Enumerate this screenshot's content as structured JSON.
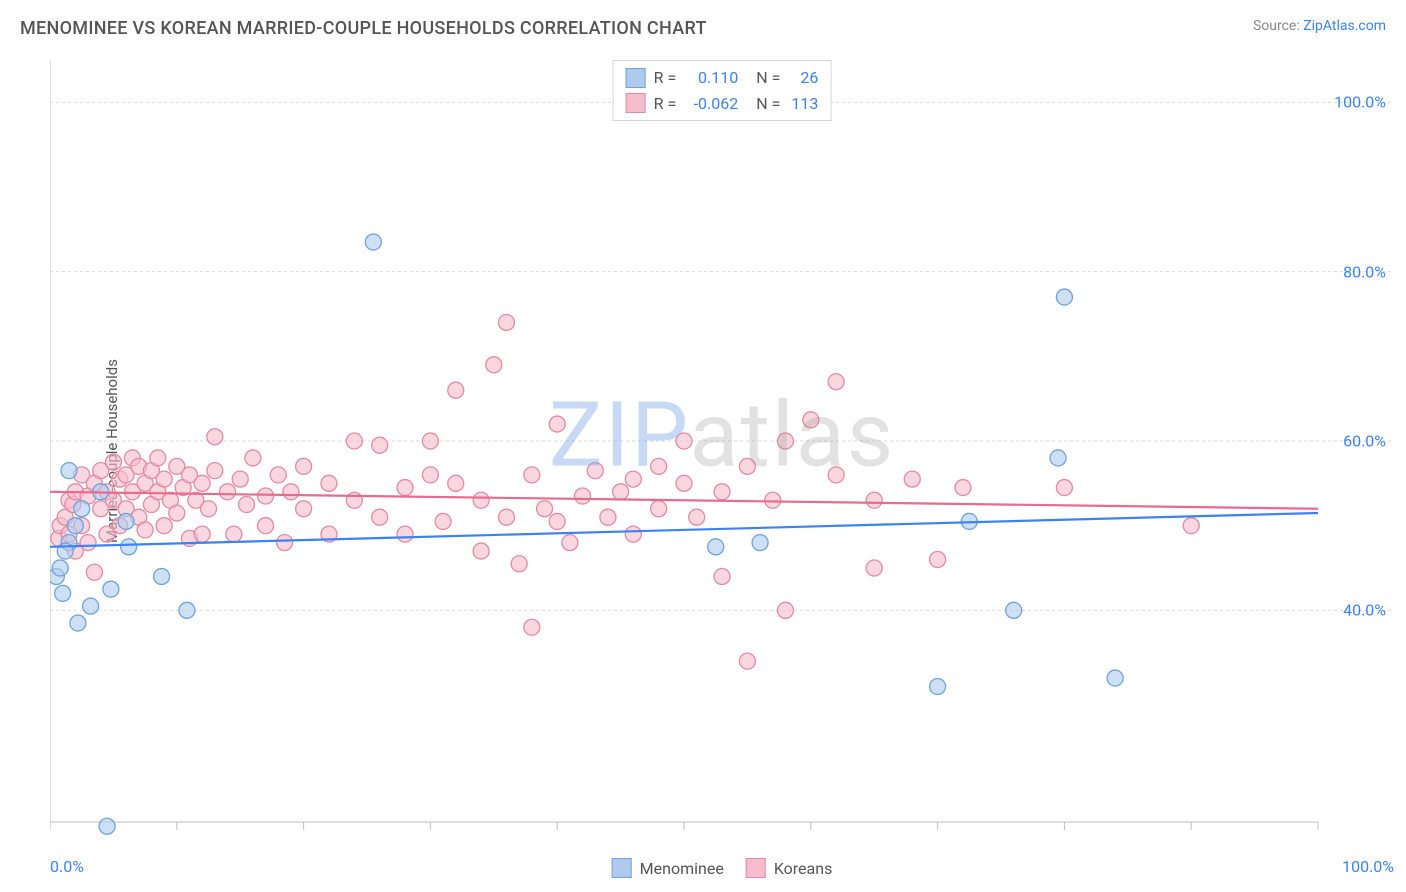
{
  "header": {
    "title": "MENOMINEE VS KOREAN MARRIED-COUPLE HOUSEHOLDS CORRELATION CHART",
    "source_prefix": "Source: ",
    "source_name": "ZipAtlas.com"
  },
  "watermark": {
    "part1": "ZIP",
    "part2": "atlas"
  },
  "chart": {
    "type": "scatter",
    "ylabel": "Married-couple Households",
    "xlim": [
      0,
      100
    ],
    "ylim": [
      15,
      105
    ],
    "x_ticks": [
      0,
      10,
      20,
      30,
      40,
      50,
      60,
      70,
      80,
      90,
      100
    ],
    "y_gridlines": [
      40,
      60,
      80,
      100
    ],
    "y_tick_labels": [
      "40.0%",
      "60.0%",
      "80.0%",
      "100.0%"
    ],
    "x_min_label": "0.0%",
    "x_max_label": "100.0%",
    "background_color": "#ffffff",
    "grid_color": "#d9d9d9",
    "axis_color": "#bfbfbf",
    "tick_label_color": "#3b82f6",
    "marker_radius": 8,
    "marker_stroke_width": 1.3,
    "trend_line_width": 2.2,
    "series": [
      {
        "name": "Menominee",
        "fill": "#aecbee",
        "stroke": "#6fa3de",
        "fill_opacity": 0.6,
        "R": "0.110",
        "N": "26",
        "trend": {
          "y_at_x0": 47.5,
          "y_at_x100": 51.5,
          "color": "#3b82f6"
        },
        "points": [
          [
            0.5,
            44.0
          ],
          [
            0.8,
            45.0
          ],
          [
            1.0,
            42.0
          ],
          [
            1.5,
            48.0
          ],
          [
            1.5,
            56.5
          ],
          [
            2.0,
            50.0
          ],
          [
            2.2,
            38.5
          ],
          [
            3.2,
            40.5
          ],
          [
            4.0,
            54.0
          ],
          [
            4.8,
            42.5
          ],
          [
            6.0,
            50.5
          ],
          [
            6.2,
            47.5
          ],
          [
            8.8,
            44.0
          ],
          [
            10.8,
            40.0
          ],
          [
            25.5,
            83.5
          ],
          [
            52.5,
            47.5
          ],
          [
            56.0,
            48.0
          ],
          [
            70.0,
            31.0
          ],
          [
            72.5,
            50.5
          ],
          [
            76.0,
            40.0
          ],
          [
            79.5,
            58.0
          ],
          [
            80.0,
            77.0
          ],
          [
            84.0,
            32.0
          ],
          [
            4.5,
            14.5
          ],
          [
            2.5,
            52.0
          ],
          [
            1.2,
            47.0
          ]
        ]
      },
      {
        "name": "Koreans",
        "fill": "#f6bccb",
        "stroke": "#e48aa3",
        "fill_opacity": 0.6,
        "R": "-0.062",
        "N": "113",
        "trend": {
          "y_at_x0": 54.0,
          "y_at_x100": 52.0,
          "color": "#e86a8d"
        },
        "points": [
          [
            0.7,
            48.5
          ],
          [
            0.8,
            50.0
          ],
          [
            1.2,
            51.0
          ],
          [
            1.5,
            53.0
          ],
          [
            1.5,
            49.0
          ],
          [
            1.8,
            52.5
          ],
          [
            2.0,
            54.0
          ],
          [
            2.0,
            47.0
          ],
          [
            2.5,
            56.0
          ],
          [
            2.5,
            50.0
          ],
          [
            3.0,
            53.5
          ],
          [
            3.0,
            48.0
          ],
          [
            3.5,
            55.0
          ],
          [
            3.5,
            44.5
          ],
          [
            4.0,
            52.0
          ],
          [
            4.0,
            56.5
          ],
          [
            4.5,
            54.0
          ],
          [
            4.5,
            49.0
          ],
          [
            5.0,
            53.0
          ],
          [
            5.0,
            57.5
          ],
          [
            5.5,
            55.5
          ],
          [
            5.5,
            50.0
          ],
          [
            6.0,
            56.0
          ],
          [
            6.0,
            52.0
          ],
          [
            6.5,
            58.0
          ],
          [
            6.5,
            54.0
          ],
          [
            7.0,
            51.0
          ],
          [
            7.0,
            57.0
          ],
          [
            7.5,
            55.0
          ],
          [
            7.5,
            49.5
          ],
          [
            8.0,
            56.5
          ],
          [
            8.0,
            52.5
          ],
          [
            8.5,
            54.0
          ],
          [
            8.5,
            58.0
          ],
          [
            9.0,
            50.0
          ],
          [
            9.0,
            55.5
          ],
          [
            9.5,
            53.0
          ],
          [
            10.0,
            57.0
          ],
          [
            10.0,
            51.5
          ],
          [
            10.5,
            54.5
          ],
          [
            11.0,
            56.0
          ],
          [
            11.0,
            48.5
          ],
          [
            11.5,
            53.0
          ],
          [
            12.0,
            55.0
          ],
          [
            12.0,
            49.0
          ],
          [
            12.5,
            52.0
          ],
          [
            13.0,
            56.5
          ],
          [
            13.0,
            60.5
          ],
          [
            14.0,
            54.0
          ],
          [
            14.5,
            49.0
          ],
          [
            15.0,
            55.5
          ],
          [
            15.5,
            52.5
          ],
          [
            16.0,
            58.0
          ],
          [
            17.0,
            50.0
          ],
          [
            17.0,
            53.5
          ],
          [
            18.0,
            56.0
          ],
          [
            18.5,
            48.0
          ],
          [
            19.0,
            54.0
          ],
          [
            20.0,
            52.0
          ],
          [
            20.0,
            57.0
          ],
          [
            22.0,
            55.0
          ],
          [
            22.0,
            49.0
          ],
          [
            24.0,
            53.0
          ],
          [
            24.0,
            60.0
          ],
          [
            26.0,
            51.0
          ],
          [
            26.0,
            59.5
          ],
          [
            28.0,
            54.5
          ],
          [
            28.0,
            49.0
          ],
          [
            30.0,
            56.0
          ],
          [
            30.0,
            60.0
          ],
          [
            31.0,
            50.5
          ],
          [
            32.0,
            55.0
          ],
          [
            32.0,
            66.0
          ],
          [
            34.0,
            47.0
          ],
          [
            34.0,
            53.0
          ],
          [
            35.0,
            69.0
          ],
          [
            36.0,
            51.0
          ],
          [
            36.0,
            74.0
          ],
          [
            37.0,
            45.5
          ],
          [
            38.0,
            56.0
          ],
          [
            38.0,
            38.0
          ],
          [
            39.0,
            52.0
          ],
          [
            40.0,
            50.5
          ],
          [
            40.0,
            62.0
          ],
          [
            41.0,
            48.0
          ],
          [
            42.0,
            53.5
          ],
          [
            43.0,
            56.5
          ],
          [
            44.0,
            51.0
          ],
          [
            45.0,
            54.0
          ],
          [
            46.0,
            55.5
          ],
          [
            46.0,
            49.0
          ],
          [
            48.0,
            57.0
          ],
          [
            48.0,
            52.0
          ],
          [
            50.0,
            55.0
          ],
          [
            50.0,
            60.0
          ],
          [
            51.0,
            51.0
          ],
          [
            53.0,
            54.0
          ],
          [
            53.0,
            44.0
          ],
          [
            55.0,
            34.0
          ],
          [
            55.0,
            57.0
          ],
          [
            57.0,
            53.0
          ],
          [
            58.0,
            60.0
          ],
          [
            58.0,
            40.0
          ],
          [
            60.0,
            62.5
          ],
          [
            62.0,
            56.0
          ],
          [
            62.0,
            67.0
          ],
          [
            65.0,
            53.0
          ],
          [
            65.0,
            45.0
          ],
          [
            68.0,
            55.5
          ],
          [
            70.0,
            46.0
          ],
          [
            72.0,
            54.5
          ],
          [
            80.0,
            54.5
          ],
          [
            90.0,
            50.0
          ]
        ]
      }
    ],
    "legend_top": {
      "rows": [
        {
          "swatch_fill": "#aecbee",
          "swatch_stroke": "#6fa3de",
          "r_label": "R =",
          "r_val": "0.110",
          "n_label": "N =",
          "n_val": "26"
        },
        {
          "swatch_fill": "#f6bccb",
          "swatch_stroke": "#e48aa3",
          "r_label": "R =",
          "r_val": "-0.062",
          "n_label": "N =",
          "n_val": "113"
        }
      ]
    },
    "legend_bottom": [
      {
        "swatch_fill": "#aecbee",
        "swatch_stroke": "#6fa3de",
        "label": "Menominee"
      },
      {
        "swatch_fill": "#f6bccb",
        "swatch_stroke": "#e48aa3",
        "label": "Koreans"
      }
    ]
  }
}
